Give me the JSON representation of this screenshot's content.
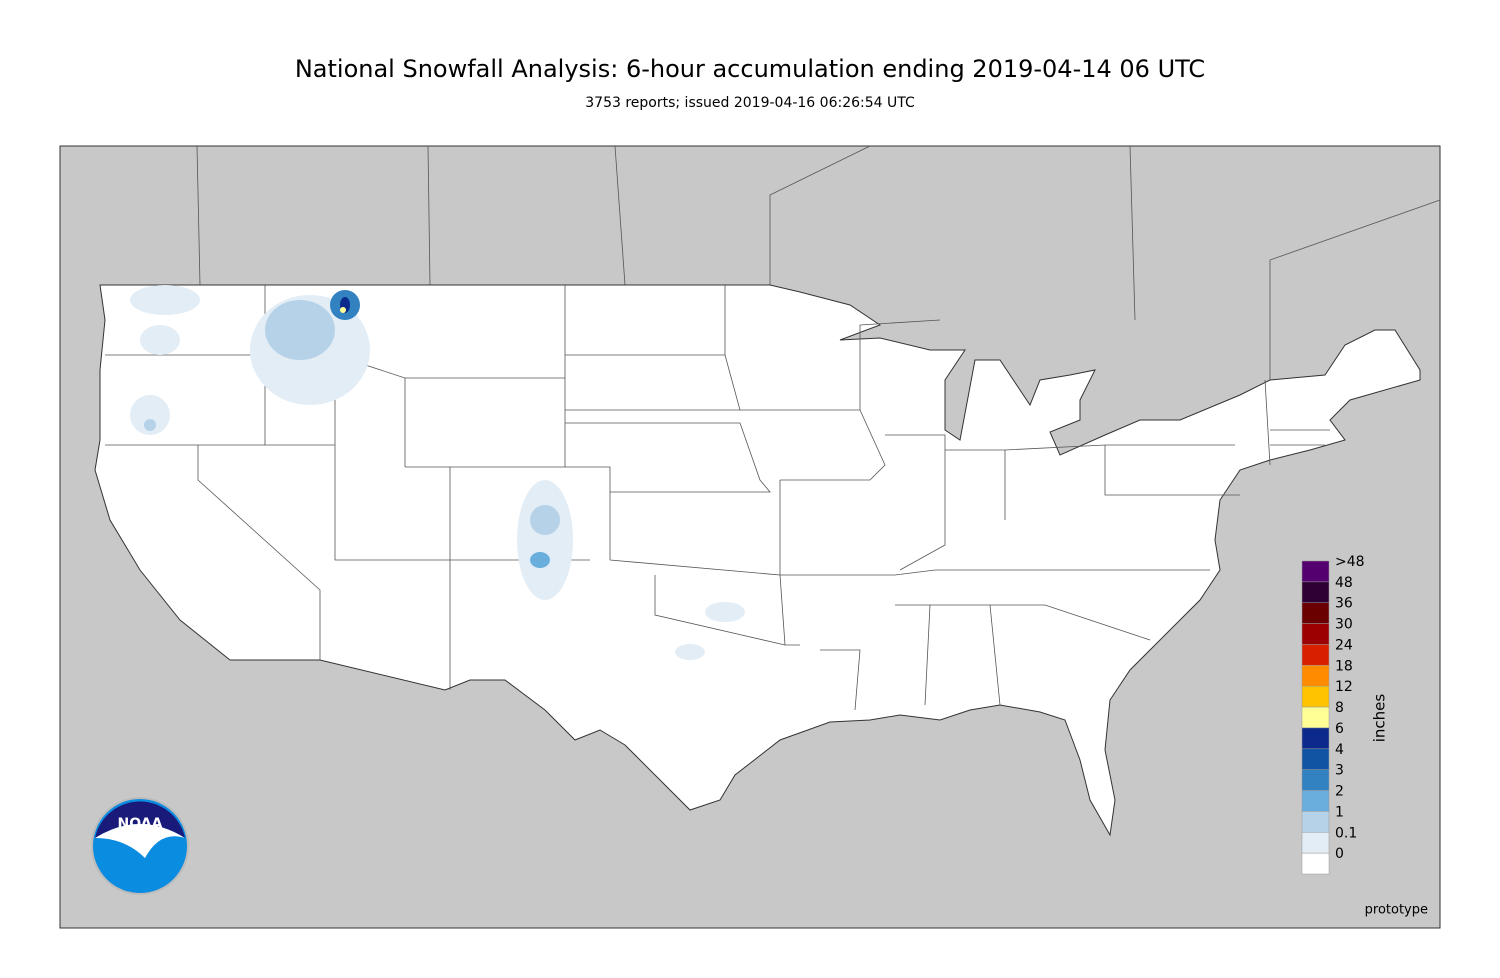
{
  "header": {
    "title": "National Snowfall Analysis: 6-hour accumulation ending 2019-04-14 06 UTC",
    "subtitle": "3753 reports; issued 2019-04-16 06:26:54 UTC"
  },
  "legend": {
    "title": "inches",
    "items": [
      {
        "label": ">48",
        "color": "#54006e"
      },
      {
        "label": "48",
        "color": "#2f0033"
      },
      {
        "label": "36",
        "color": "#6a0000"
      },
      {
        "label": "30",
        "color": "#9c0000"
      },
      {
        "label": "24",
        "color": "#d81f00"
      },
      {
        "label": "18",
        "color": "#ff8c00"
      },
      {
        "label": "12",
        "color": "#ffc300"
      },
      {
        "label": "8",
        "color": "#ffff96"
      },
      {
        "label": "6",
        "color": "#0c2a8c"
      },
      {
        "label": "4",
        "color": "#0f55a3"
      },
      {
        "label": "3",
        "color": "#3281c1"
      },
      {
        "label": "2",
        "color": "#6aaede"
      },
      {
        "label": "1",
        "color": "#b6d2e8"
      },
      {
        "label": "0.1",
        "color": "#e3edf6"
      },
      {
        "label": "0",
        "color": "#ffffff"
      }
    ]
  },
  "logo": "NOAA",
  "note": "prototype"
}
